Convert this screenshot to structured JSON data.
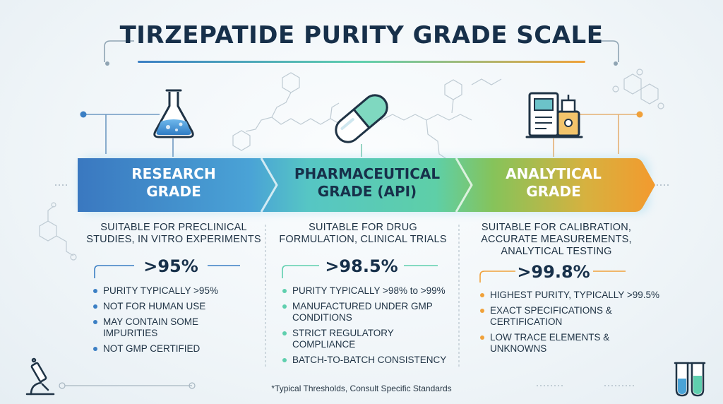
{
  "title": "TIRZEPATIDE PURITY GRADE SCALE",
  "footnote": "*Typical Thresholds, Consult Specific Standards",
  "colors": {
    "research": "#3b7fc4",
    "pharma": "#5fcfae",
    "analytical": "#f0a13a",
    "ink": "#17304a"
  },
  "grades": [
    {
      "name_line1": "RESEARCH",
      "name_line2": "GRADE",
      "icon": "flask-icon",
      "desc1": "SUITABLE FOR PRECLINICAL",
      "desc2": "STUDIES, IN VITRO EXPERIMENTS",
      "desc3": "",
      "purity": ">95%",
      "bullets": [
        "PURITY TYPICALLY >95%",
        "NOT FOR HUMAN USE",
        "MAY CONTAIN SOME IMPURITIES",
        "NOT GMP CERTIFIED"
      ]
    },
    {
      "name_line1": "PHARMACEUTICAL",
      "name_line2": "GRADE (API)",
      "icon": "capsule-icon",
      "desc1": "SUITABLE FOR DRUG",
      "desc2": "FORMULATION, CLINICAL TRIALS",
      "desc3": "",
      "purity": ">98.5%",
      "bullets": [
        "PURITY TYPICALLY >98% to >99%",
        "MANUFACTURED UNDER GMP CONDITIONS",
        "STRICT REGULATORY COMPLIANCE",
        "BATCH-TO-BATCH CONSISTENCY"
      ]
    },
    {
      "name_line1": "ANALYTICAL",
      "name_line2": "GRADE",
      "icon": "lab-instrument-icon",
      "desc1": "SUITABLE FOR CALIBRATION,",
      "desc2": "ACCURATE MEASUREMENTS,",
      "desc3": "ANALYTICAL TESTING",
      "purity": ">99.8%",
      "bullets": [
        "HIGHEST PURITY, TYPICALLY >99.5%",
        "EXACT SPECIFICATIONS & CERTIFICATION",
        "LOW TRACE ELEMENTS & UNKNOWNS"
      ]
    }
  ]
}
